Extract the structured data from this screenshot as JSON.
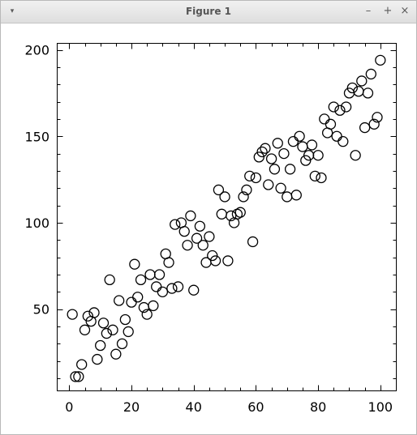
{
  "window": {
    "title": "Figure 1"
  },
  "controls": {
    "menu": "▾",
    "minimize": "–",
    "maximize": "+",
    "close": "×"
  },
  "chart_data": {
    "type": "scatter",
    "title": "",
    "xlabel": "",
    "ylabel": "",
    "xlim": [
      -4,
      105
    ],
    "ylim": [
      3,
      204
    ],
    "xticks": [
      0,
      20,
      40,
      60,
      80,
      100
    ],
    "yticks": [
      50,
      100,
      150,
      200
    ],
    "grid": false,
    "marker": "open-circle",
    "marker_color": "#000000",
    "points": [
      [
        1,
        47
      ],
      [
        2,
        11
      ],
      [
        3,
        11
      ],
      [
        4,
        18
      ],
      [
        5,
        38
      ],
      [
        6,
        46
      ],
      [
        7,
        43
      ],
      [
        8,
        48
      ],
      [
        9,
        21
      ],
      [
        10,
        29
      ],
      [
        11,
        42
      ],
      [
        12,
        36
      ],
      [
        13,
        67
      ],
      [
        14,
        38
      ],
      [
        15,
        24
      ],
      [
        16,
        55
      ],
      [
        17,
        30
      ],
      [
        18,
        44
      ],
      [
        19,
        37
      ],
      [
        20,
        54
      ],
      [
        21,
        76
      ],
      [
        22,
        57
      ],
      [
        23,
        67
      ],
      [
        24,
        51
      ],
      [
        25,
        47
      ],
      [
        26,
        70
      ],
      [
        27,
        52
      ],
      [
        28,
        63
      ],
      [
        29,
        70
      ],
      [
        30,
        60
      ],
      [
        31,
        82
      ],
      [
        32,
        77
      ],
      [
        33,
        62
      ],
      [
        34,
        99
      ],
      [
        35,
        63
      ],
      [
        36,
        100
      ],
      [
        37,
        95
      ],
      [
        38,
        87
      ],
      [
        39,
        104
      ],
      [
        40,
        61
      ],
      [
        41,
        91
      ],
      [
        42,
        98
      ],
      [
        43,
        87
      ],
      [
        44,
        77
      ],
      [
        45,
        92
      ],
      [
        46,
        81
      ],
      [
        47,
        78
      ],
      [
        48,
        119
      ],
      [
        49,
        105
      ],
      [
        50,
        115
      ],
      [
        51,
        78
      ],
      [
        52,
        104
      ],
      [
        53,
        100
      ],
      [
        54,
        105
      ],
      [
        55,
        106
      ],
      [
        56,
        115
      ],
      [
        57,
        119
      ],
      [
        58,
        127
      ],
      [
        59,
        89
      ],
      [
        60,
        126
      ],
      [
        61,
        138
      ],
      [
        62,
        141
      ],
      [
        63,
        143
      ],
      [
        64,
        122
      ],
      [
        65,
        137
      ],
      [
        66,
        131
      ],
      [
        67,
        146
      ],
      [
        68,
        120
      ],
      [
        69,
        140
      ],
      [
        70,
        115
      ],
      [
        71,
        131
      ],
      [
        72,
        147
      ],
      [
        73,
        116
      ],
      [
        74,
        150
      ],
      [
        75,
        144
      ],
      [
        76,
        136
      ],
      [
        77,
        139
      ],
      [
        78,
        145
      ],
      [
        79,
        127
      ],
      [
        80,
        139
      ],
      [
        81,
        126
      ],
      [
        82,
        160
      ],
      [
        83,
        152
      ],
      [
        84,
        157
      ],
      [
        85,
        167
      ],
      [
        86,
        150
      ],
      [
        87,
        165
      ],
      [
        88,
        147
      ],
      [
        89,
        167
      ],
      [
        90,
        175
      ],
      [
        91,
        178
      ],
      [
        92,
        139
      ],
      [
        93,
        176
      ],
      [
        94,
        182
      ],
      [
        95,
        155
      ],
      [
        96,
        175
      ],
      [
        97,
        186
      ],
      [
        98,
        157
      ],
      [
        99,
        161
      ],
      [
        100,
        194
      ]
    ]
  }
}
